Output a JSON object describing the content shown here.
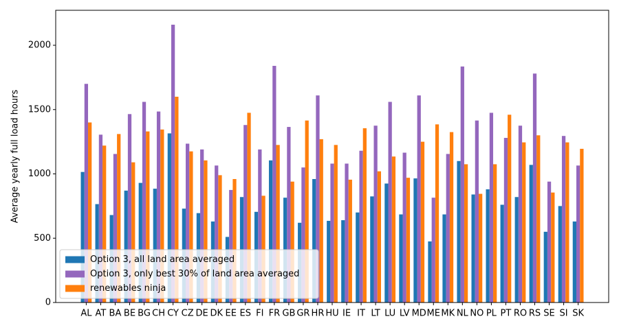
{
  "chart_data": {
    "type": "bar",
    "ylabel": "Average yearly full load hours",
    "categories": [
      "AL",
      "AT",
      "BA",
      "BE",
      "BG",
      "CH",
      "CY",
      "CZ",
      "DE",
      "DK",
      "EE",
      "ES",
      "FI",
      "FR",
      "GB",
      "GR",
      "HR",
      "HU",
      "IE",
      "IT",
      "LT",
      "LU",
      "LV",
      "MD",
      "ME",
      "MK",
      "NL",
      "NO",
      "PL",
      "PT",
      "RO",
      "RS",
      "SE",
      "SI",
      "SK"
    ],
    "series": [
      {
        "name": "Option 3, all land area averaged",
        "color": "#1f77b4",
        "values": [
          1015,
          765,
          680,
          870,
          930,
          885,
          1315,
          730,
          695,
          630,
          510,
          820,
          705,
          1105,
          815,
          620,
          960,
          635,
          640,
          700,
          825,
          925,
          685,
          965,
          475,
          685,
          1100,
          840,
          880,
          760,
          820,
          1070,
          550,
          750,
          630
        ]
      },
      {
        "name": "Option 3, only best 30% of land area averaged",
        "color": "#9467bd",
        "values": [
          1700,
          1305,
          1155,
          1465,
          1560,
          1485,
          2160,
          1235,
          1190,
          1065,
          875,
          1380,
          1190,
          1840,
          1365,
          1050,
          1610,
          1080,
          1080,
          1180,
          1375,
          1560,
          1165,
          1610,
          815,
          1155,
          1835,
          1415,
          1475,
          1280,
          1375,
          1780,
          940,
          1295,
          1065
        ]
      },
      {
        "name": "renewables ninja",
        "color": "#ff7f0e",
        "values": [
          1400,
          1220,
          1310,
          1090,
          1330,
          1345,
          1600,
          1175,
          1105,
          990,
          960,
          1475,
          830,
          1225,
          940,
          1415,
          1270,
          1225,
          955,
          1355,
          1020,
          1135,
          970,
          1250,
          1385,
          1325,
          1075,
          845,
          1075,
          1460,
          1245,
          1300,
          855,
          1245,
          1195
        ]
      }
    ],
    "ylim": [
      0,
      2272
    ],
    "yticks": [
      0,
      500,
      1000,
      1500,
      2000
    ],
    "legend": "lower left"
  }
}
